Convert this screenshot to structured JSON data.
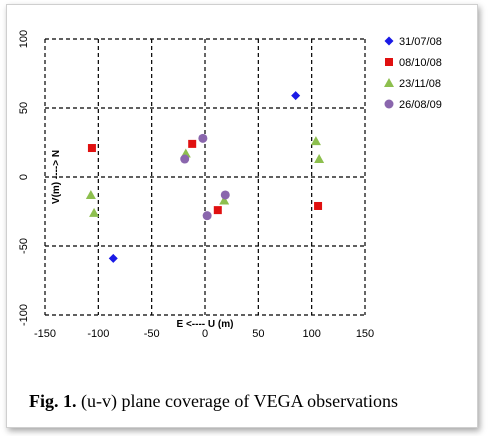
{
  "chart_data": {
    "type": "scatter",
    "xlabel": "E <---- U (m)",
    "ylabel": "V(m) ----> N",
    "xlim": [
      -150,
      150
    ],
    "ylim": [
      -100,
      100
    ],
    "xticks": [
      -150,
      -100,
      -50,
      0,
      50,
      100,
      150
    ],
    "yticks": [
      -100,
      -50,
      0,
      50,
      100
    ],
    "grid": "dashed",
    "legend_position": "right",
    "series": [
      {
        "name": "31/07/08",
        "marker": "diamond",
        "color": "#1a1ae6",
        "points": [
          [
            85,
            59
          ],
          [
            -86,
            -59
          ]
        ]
      },
      {
        "name": "08/10/08",
        "marker": "square",
        "color": "#e01010",
        "points": [
          [
            -106,
            21
          ],
          [
            -12,
            24
          ],
          [
            12,
            -24
          ],
          [
            106,
            -21
          ]
        ]
      },
      {
        "name": "23/11/08",
        "marker": "triangle",
        "color": "#8dbf4e",
        "points": [
          [
            -107,
            -13
          ],
          [
            -104,
            -26
          ],
          [
            -18,
            17
          ],
          [
            18,
            -17
          ],
          [
            104,
            26
          ],
          [
            107,
            13
          ]
        ]
      },
      {
        "name": "26/08/09",
        "marker": "circle",
        "color": "#8a66ad",
        "points": [
          [
            -19,
            13
          ],
          [
            -2,
            28
          ],
          [
            2,
            -28
          ],
          [
            19,
            -13
          ]
        ]
      }
    ]
  },
  "caption": {
    "label": "Fig. 1.",
    "text": " (u-v) plane coverage of VEGA observations"
  }
}
